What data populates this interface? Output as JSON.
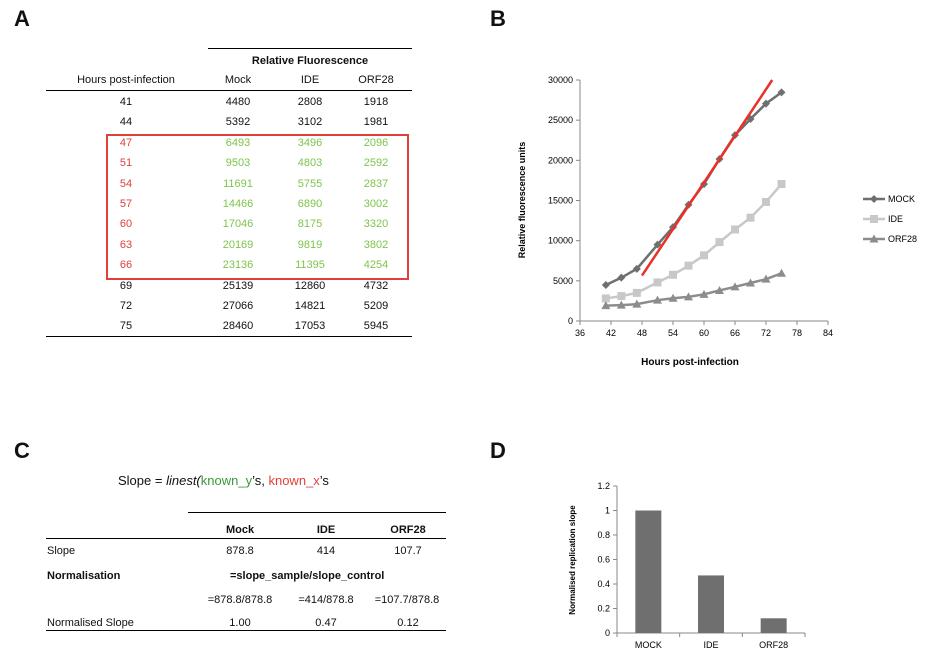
{
  "panels": {
    "a": "A",
    "b": "B",
    "c": "C",
    "d": "D"
  },
  "table_a": {
    "group_header": "Relative Fluorescence",
    "col_hours": "Hours post-infection",
    "col_mock": "Mock",
    "col_ide": "IDE",
    "col_orf28": "ORF28",
    "rows": [
      [
        "41",
        "4480",
        "2808",
        "1918"
      ],
      [
        "44",
        "5392",
        "3102",
        "1981"
      ],
      [
        "47",
        "6493",
        "3496",
        "2096"
      ],
      [
        "51",
        "9503",
        "4803",
        "2592"
      ],
      [
        "54",
        "11691",
        "5755",
        "2837"
      ],
      [
        "57",
        "14466",
        "6890",
        "3002"
      ],
      [
        "60",
        "17046",
        "8175",
        "3320"
      ],
      [
        "63",
        "20169",
        "9819",
        "3802"
      ],
      [
        "66",
        "23136",
        "11395",
        "4254"
      ],
      [
        "69",
        "25139",
        "12860",
        "4732"
      ],
      [
        "72",
        "27066",
        "14821",
        "5209"
      ],
      [
        "75",
        "28460",
        "17053",
        "5945"
      ]
    ],
    "highlight_color": "#e0403a",
    "highlight_value_color": "#7dc44a"
  },
  "chart_data": [
    {
      "type": "line",
      "xlabel": "Hours post-infection",
      "ylabel": "Relative fluorescence units",
      "xlim": [
        36,
        84
      ],
      "ylim": [
        0,
        30000
      ],
      "x_ticks": [
        "36",
        "42",
        "48",
        "54",
        "60",
        "66",
        "72",
        "78",
        "84"
      ],
      "y_ticks": [
        "0",
        "5000",
        "10000",
        "15000",
        "20000",
        "25000",
        "30000"
      ],
      "legend_position": "right",
      "x": [
        41,
        44,
        47,
        51,
        54,
        57,
        60,
        63,
        66,
        69,
        72,
        75
      ],
      "series": [
        {
          "name": "MOCK",
          "values": [
            4480,
            5392,
            6493,
            9503,
            11691,
            14466,
            17046,
            20169,
            23136,
            25139,
            27066,
            28460
          ],
          "color": "#6f6f6f",
          "marker": "diamond"
        },
        {
          "name": "IDE",
          "values": [
            2808,
            3102,
            3496,
            4803,
            5755,
            6890,
            8175,
            9819,
            11395,
            12860,
            14821,
            17053
          ],
          "color": "#c8c8c8",
          "marker": "square"
        },
        {
          "name": "ORF28",
          "values": [
            1918,
            1981,
            2096,
            2592,
            2837,
            3002,
            3320,
            3802,
            4254,
            4732,
            5209,
            5945
          ],
          "color": "#8c8c8c",
          "marker": "triangle"
        }
      ],
      "trendline": {
        "x": [
          48,
          73.2
        ],
        "y": [
          5650,
          30000
        ],
        "color": "#e8312a"
      }
    },
    {
      "type": "bar",
      "ylabel": "Normalised replication slope",
      "categories": [
        "MOCK",
        "IDE",
        "ORF28"
      ],
      "values": [
        1.0,
        0.47,
        0.12
      ],
      "ylim": [
        0,
        1.2
      ],
      "y_ticks": [
        "0",
        "0.2",
        "0.4",
        "0.6",
        "0.8",
        "1",
        "1.2"
      ],
      "bar_color": "#6f6f6f"
    }
  ],
  "panel_c": {
    "formula": {
      "prefix": "Slope = ",
      "func": "linest(",
      "known_y": "known_y",
      "ys_suffix": "’s, ",
      "known_x": "known_x",
      "xs_suffix": "’s",
      "y_color": "#3a9a3a",
      "x_color": "#e0403a"
    },
    "col_mock": "Mock",
    "col_ide": "IDE",
    "col_orf28": "ORF28",
    "slope_label": "Slope",
    "slope_values": [
      "878.8",
      "414",
      "107.7"
    ],
    "norm_label": "Normalisation",
    "norm_formula": "=slope_sample/slope_control",
    "norm_calcs": [
      "=878.8/878.8",
      "=414/878.8",
      "=107.7/878.8"
    ],
    "normalised_label": "Normalised Slope",
    "normalised_values": [
      "1.00",
      "0.47",
      "0.12"
    ]
  }
}
